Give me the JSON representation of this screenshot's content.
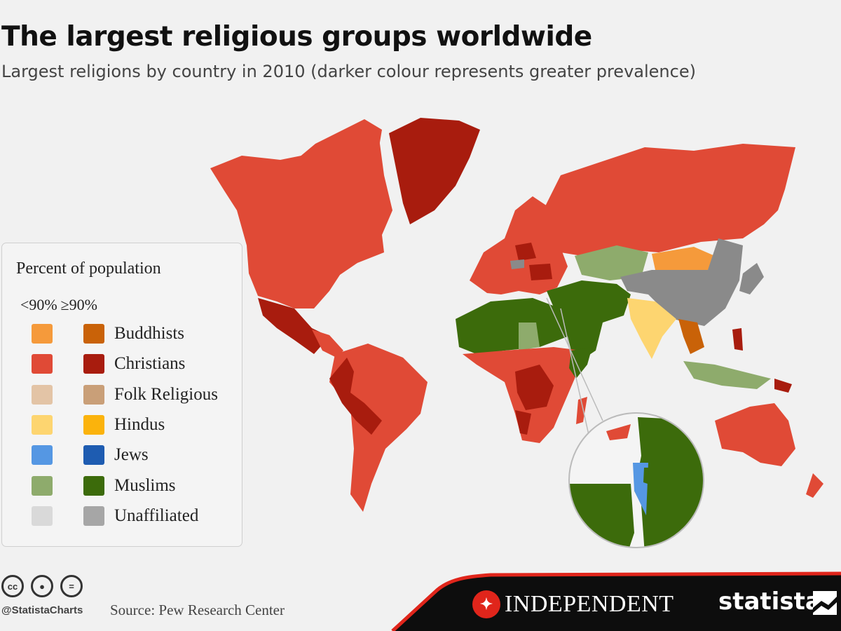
{
  "header": {
    "title": "The largest religious groups worldwide",
    "subtitle": "Largest religions by country in 2010 (darker colour represents greater prevalence)"
  },
  "legend": {
    "title": "Percent of population",
    "col_low": "<90%",
    "col_high": "≥90%",
    "items": [
      {
        "label": "Buddhists",
        "low_color": "#f59a3b",
        "high_color": "#c96208"
      },
      {
        "label": "Christians",
        "low_color": "#e04a36",
        "high_color": "#a81c0e"
      },
      {
        "label": "Folk Religious",
        "low_color": "#e3c4a6",
        "high_color": "#c99f78"
      },
      {
        "label": "Hindus",
        "low_color": "#fdd570",
        "high_color": "#fbb30c"
      },
      {
        "label": "Jews",
        "low_color": "#5597e3",
        "high_color": "#1e5cb1"
      },
      {
        "label": "Muslims",
        "low_color": "#8eab6c",
        "high_color": "#3c6b0b"
      },
      {
        "label": "Unaffiliated",
        "low_color": "#d9d9d9",
        "high_color": "#a6a6a6"
      }
    ]
  },
  "footer": {
    "handle": "@StatistaCharts",
    "source": "Source: Pew Research Center",
    "partner": "INDEPENDENT",
    "brand": "statista"
  },
  "icons": [
    "cc-icon",
    "attribution-icon",
    "no-derivatives-icon",
    "eagle-logo-icon",
    "statista-logo-icon"
  ]
}
